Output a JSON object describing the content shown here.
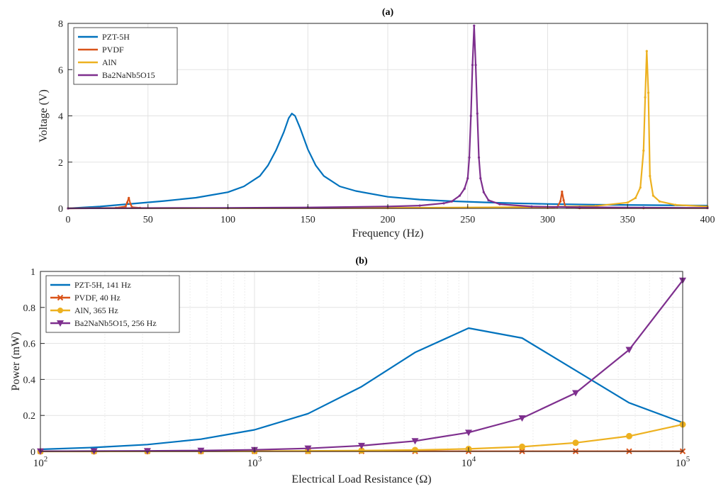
{
  "chart_data": [
    {
      "type": "line",
      "title": "(a)",
      "xlabel": "Frequency (Hz)",
      "ylabel": "Voltage (V)",
      "xlim": [
        0,
        400
      ],
      "ylim": [
        0,
        8
      ],
      "xticks": [
        0,
        50,
        100,
        150,
        200,
        250,
        300,
        350,
        400
      ],
      "yticks": [
        0,
        2,
        4,
        6,
        8
      ],
      "grid": true,
      "legend_position": "top-left",
      "series": [
        {
          "name": "PZT-5H",
          "color": "#0072BD",
          "x": [
            0,
            20,
            40,
            60,
            80,
            100,
            110,
            120,
            125,
            130,
            135,
            138,
            140,
            142,
            145,
            150,
            155,
            160,
            170,
            180,
            200,
            220,
            240,
            260,
            280,
            300,
            330,
            360,
            400
          ],
          "y": [
            0,
            0.08,
            0.2,
            0.32,
            0.46,
            0.7,
            0.95,
            1.4,
            1.85,
            2.5,
            3.3,
            3.9,
            4.1,
            4.0,
            3.5,
            2.55,
            1.85,
            1.4,
            0.95,
            0.75,
            0.5,
            0.38,
            0.31,
            0.26,
            0.22,
            0.19,
            0.16,
            0.14,
            0.12
          ]
        },
        {
          "name": "PVDF",
          "color": "#D95319",
          "x": [
            0,
            30,
            36,
            37,
            38,
            39,
            40,
            45,
            100,
            200,
            300,
            306,
            308,
            309,
            310,
            311,
            312,
            320,
            360,
            400
          ],
          "y": [
            0,
            0.02,
            0.08,
            0.25,
            0.45,
            0.2,
            0.05,
            0.02,
            0.01,
            0.01,
            0.02,
            0.06,
            0.3,
            0.72,
            0.35,
            0.08,
            0.03,
            0.01,
            0.01,
            0.01
          ]
        },
        {
          "name": "AlN",
          "color": "#EDB120",
          "x": [
            0,
            100,
            200,
            250,
            300,
            330,
            350,
            355,
            358,
            360,
            361,
            362,
            363,
            364,
            366,
            370,
            380,
            400
          ],
          "y": [
            0,
            0.01,
            0.02,
            0.04,
            0.06,
            0.1,
            0.25,
            0.45,
            0.9,
            2.5,
            4.8,
            6.8,
            5.0,
            1.4,
            0.55,
            0.3,
            0.15,
            0.08
          ]
        },
        {
          "name": "Ba2NaNb5O15",
          "color": "#7E2F8E",
          "x": [
            0,
            100,
            150,
            200,
            220,
            235,
            240,
            245,
            248,
            250,
            251,
            252,
            253,
            254,
            255,
            256,
            257,
            258,
            260,
            263,
            270,
            290,
            320,
            360,
            400
          ],
          "y": [
            0,
            0.02,
            0.04,
            0.08,
            0.12,
            0.22,
            0.3,
            0.55,
            0.85,
            1.3,
            2.2,
            4.0,
            6.2,
            7.9,
            6.2,
            4.1,
            2.2,
            1.3,
            0.7,
            0.35,
            0.18,
            0.08,
            0.05,
            0.03,
            0.02
          ]
        }
      ]
    },
    {
      "type": "line",
      "title": "(b)",
      "xlabel": "Electrical Load Resistance (Ω)",
      "ylabel": "Power (mW)",
      "xscale": "log",
      "xlim": [
        100,
        100000
      ],
      "ylim": [
        0,
        1
      ],
      "xticks": [
        100,
        1000,
        10000,
        100000
      ],
      "xtick_labels": [
        {
          "base": "10",
          "exp": "2"
        },
        {
          "base": "10",
          "exp": "3"
        },
        {
          "base": "10",
          "exp": "4"
        },
        {
          "base": "10",
          "exp": "5"
        }
      ],
      "yticks": [
        0,
        0.2,
        0.4,
        0.6,
        0.8,
        1
      ],
      "ytick_labels": [
        "0",
        "0.2",
        "0.4",
        "0.6",
        "0.8",
        "1"
      ],
      "grid": true,
      "legend_position": "top-left",
      "series": [
        {
          "name": "PZT-5H, 141 Hz",
          "color": "#0072BD",
          "marker": "none",
          "x": [
            100,
            178,
            316,
            562,
            1000,
            1778,
            3162,
            5623,
            10000,
            17783,
            31623,
            56234,
            100000
          ],
          "y": [
            0.012,
            0.022,
            0.038,
            0.068,
            0.12,
            0.21,
            0.36,
            0.55,
            0.685,
            0.63,
            0.45,
            0.27,
            0.16
          ]
        },
        {
          "name": "PVDF, 40 Hz",
          "color": "#D95319",
          "marker": "x",
          "x": [
            100,
            178,
            316,
            562,
            1000,
            1778,
            3162,
            5623,
            10000,
            17783,
            31623,
            56234,
            100000
          ],
          "y": [
            0.001,
            0.001,
            0.001,
            0.001,
            0.001,
            0.001,
            0.001,
            0.001,
            0.001,
            0.001,
            0.001,
            0.001,
            0.001
          ]
        },
        {
          "name": "AlN, 365 Hz",
          "color": "#EDB120",
          "marker": "circle",
          "x": [
            100,
            178,
            316,
            562,
            1000,
            1778,
            3162,
            5623,
            10000,
            17783,
            31623,
            56234,
            100000
          ],
          "y": [
            0.0,
            0.0,
            0.001,
            0.001,
            0.002,
            0.003,
            0.005,
            0.008,
            0.014,
            0.026,
            0.048,
            0.085,
            0.15
          ]
        },
        {
          "name": "Ba2NaNb5O15, 256 Hz",
          "color": "#7E2F8E",
          "marker": "triangle-down",
          "x": [
            100,
            178,
            316,
            562,
            1000,
            1778,
            3162,
            5623,
            10000,
            17783,
            31623,
            56234,
            100000
          ],
          "y": [
            0.001,
            0.002,
            0.003,
            0.005,
            0.009,
            0.017,
            0.032,
            0.058,
            0.105,
            0.185,
            0.325,
            0.565,
            0.95
          ]
        }
      ]
    }
  ]
}
